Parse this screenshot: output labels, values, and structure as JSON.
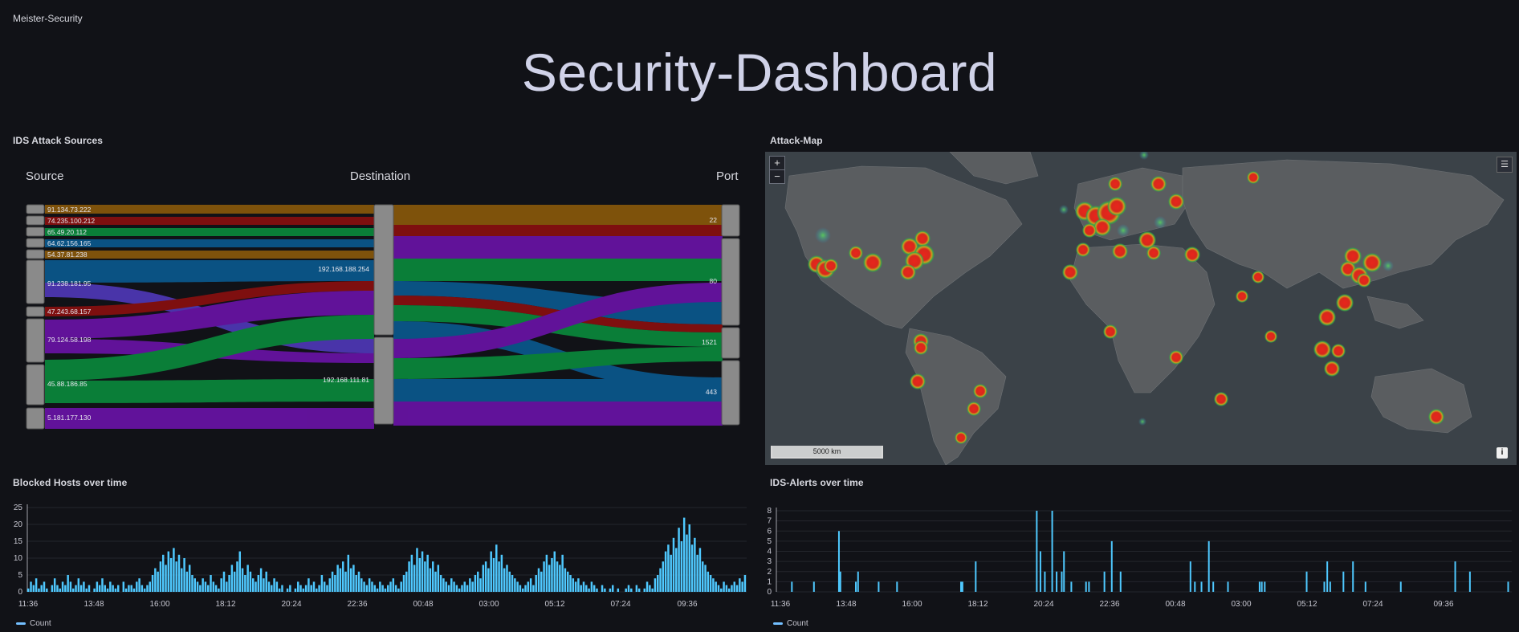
{
  "org": "Meister-Security",
  "dashboard_title": "Security-Dashboard",
  "panels": {
    "sankey": "IDS Attack Sources",
    "map": "Attack-Map",
    "blocked": "Blocked Hosts over time",
    "alerts": "IDS-Alerts over time"
  },
  "sankey": {
    "columns": [
      "Source",
      "Destination",
      "Port"
    ],
    "sources": [
      "91.134.73.222",
      "74.235.100.212",
      "65.49.20.112",
      "64.62.156.165",
      "54.37.81.238",
      "91.238.181.95",
      "47.243.68.157",
      "79.124.58.198",
      "45.88.186.85",
      "5.181.177.130"
    ],
    "destinations": [
      "192.168.188.254",
      "192.168.111.81"
    ],
    "ports": [
      "22",
      "80",
      "1521",
      "443"
    ]
  },
  "map": {
    "zoom_in": "+",
    "zoom_out": "−",
    "scale": "5000 km",
    "info": "i",
    "layers_icon": "layers-icon"
  },
  "blocked_chart": {
    "type": "bar",
    "legend": "Count",
    "ylim": [
      0,
      25
    ],
    "yticks": [
      "0",
      "5",
      "10",
      "15",
      "20",
      "25"
    ],
    "xticks": [
      "11:36",
      "13:48",
      "16:00",
      "18:12",
      "20:24",
      "22:36",
      "00:48",
      "03:00",
      "05:12",
      "07:24",
      "09:36"
    ],
    "color": "#4fc9ff",
    "values": [
      1,
      3,
      2,
      4,
      1,
      2,
      3,
      1,
      0,
      2,
      4,
      2,
      1,
      3,
      2,
      5,
      3,
      1,
      2,
      4,
      2,
      3,
      1,
      2,
      0,
      1,
      3,
      2,
      4,
      2,
      1,
      3,
      2,
      1,
      2,
      0,
      3,
      1,
      2,
      2,
      1,
      3,
      4,
      2,
      1,
      2,
      3,
      5,
      7,
      6,
      9,
      11,
      8,
      12,
      10,
      13,
      9,
      11,
      7,
      10,
      6,
      8,
      5,
      4,
      3,
      2,
      4,
      3,
      2,
      5,
      3,
      2,
      1,
      4,
      6,
      3,
      5,
      8,
      6,
      9,
      12,
      7,
      5,
      8,
      6,
      4,
      3,
      5,
      7,
      4,
      6,
      3,
      2,
      4,
      3,
      1,
      2,
      0,
      1,
      2,
      0,
      1,
      3,
      2,
      1,
      2,
      4,
      2,
      3,
      1,
      2,
      5,
      3,
      2,
      4,
      6,
      5,
      8,
      7,
      9,
      6,
      11,
      7,
      8,
      5,
      6,
      4,
      3,
      2,
      4,
      3,
      2,
      1,
      3,
      2,
      1,
      2,
      3,
      4,
      2,
      1,
      3,
      5,
      6,
      9,
      11,
      8,
      13,
      10,
      12,
      9,
      11,
      7,
      9,
      6,
      8,
      5,
      4,
      3,
      2,
      4,
      3,
      2,
      1,
      2,
      3,
      2,
      4,
      3,
      5,
      6,
      4,
      8,
      9,
      7,
      12,
      10,
      14,
      9,
      11,
      7,
      8,
      6,
      5,
      4,
      3,
      2,
      1,
      2,
      3,
      4,
      2,
      5,
      7,
      6,
      9,
      11,
      8,
      10,
      12,
      9,
      8,
      11,
      7,
      6,
      5,
      4,
      3,
      4,
      2,
      3,
      2,
      1,
      3,
      2,
      1,
      0,
      2,
      1,
      0,
      1,
      2,
      0,
      1,
      0,
      0,
      1,
      2,
      1,
      0,
      2,
      1,
      0,
      1,
      3,
      2,
      1,
      4,
      5,
      7,
      9,
      12,
      14,
      11,
      16,
      13,
      19,
      15,
      22,
      17,
      20,
      14,
      16,
      11,
      13,
      9,
      8,
      6,
      5,
      4,
      3,
      2,
      1,
      3,
      2,
      1,
      2,
      3,
      2,
      4,
      3,
      5
    ]
  },
  "alerts_chart": {
    "type": "bar",
    "legend": "Count",
    "ylim": [
      0,
      8
    ],
    "yticks": [
      "0",
      "1",
      "2",
      "3",
      "4",
      "5",
      "6",
      "7",
      "8"
    ],
    "xticks": [
      "11:36",
      "13:48",
      "16:00",
      "18:12",
      "20:24",
      "22:36",
      "00:48",
      "03:00",
      "05:12",
      "07:24",
      "09:36"
    ],
    "color": "#4fc9ff",
    "spikes": [
      [
        0.02,
        1
      ],
      [
        0.05,
        1
      ],
      [
        0.084,
        6
      ],
      [
        0.086,
        2
      ],
      [
        0.107,
        1
      ],
      [
        0.11,
        2
      ],
      [
        0.138,
        1
      ],
      [
        0.163,
        1
      ],
      [
        0.25,
        1
      ],
      [
        0.252,
        1
      ],
      [
        0.27,
        3
      ],
      [
        0.353,
        8
      ],
      [
        0.358,
        4
      ],
      [
        0.364,
        2
      ],
      [
        0.374,
        8
      ],
      [
        0.38,
        2
      ],
      [
        0.387,
        2
      ],
      [
        0.39,
        4
      ],
      [
        0.4,
        1
      ],
      [
        0.42,
        1
      ],
      [
        0.424,
        1
      ],
      [
        0.445,
        2
      ],
      [
        0.455,
        5
      ],
      [
        0.467,
        2
      ],
      [
        0.562,
        3
      ],
      [
        0.568,
        1
      ],
      [
        0.577,
        1
      ],
      [
        0.587,
        5
      ],
      [
        0.593,
        1
      ],
      [
        0.613,
        1
      ],
      [
        0.656,
        1
      ],
      [
        0.659,
        1
      ],
      [
        0.663,
        1
      ],
      [
        0.72,
        2
      ],
      [
        0.744,
        1
      ],
      [
        0.748,
        3
      ],
      [
        0.752,
        1
      ],
      [
        0.77,
        2
      ],
      [
        0.783,
        3
      ],
      [
        0.8,
        1
      ],
      [
        0.848,
        1
      ],
      [
        0.922,
        3
      ],
      [
        0.942,
        2
      ],
      [
        0.994,
        1
      ]
    ]
  }
}
